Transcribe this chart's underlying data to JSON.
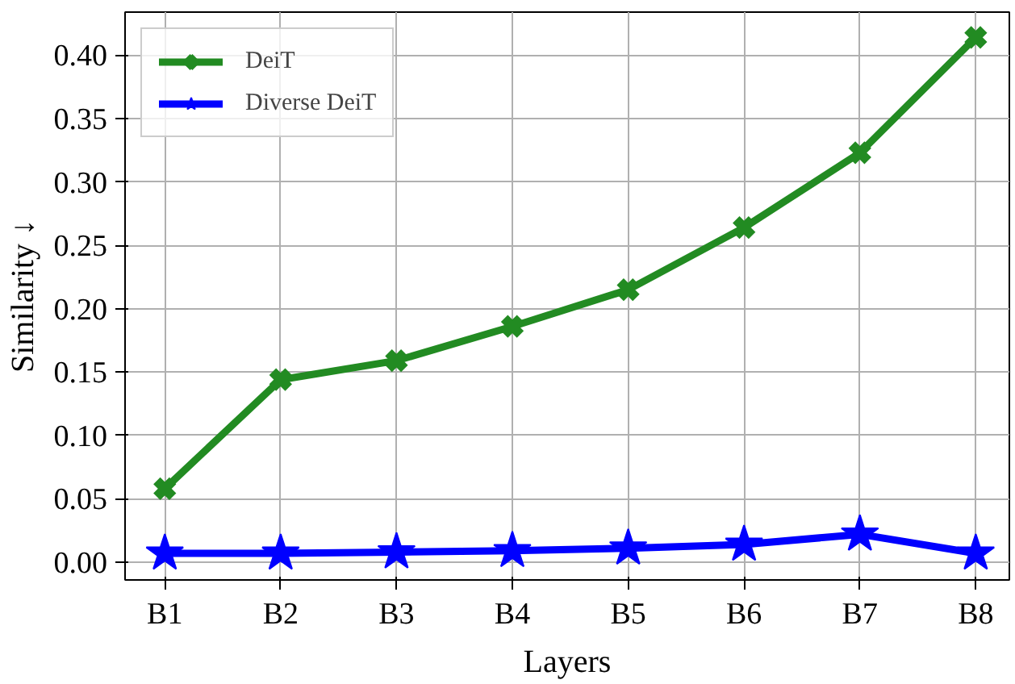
{
  "chart_data": {
    "type": "line",
    "xlabel": "Layers",
    "ylabel": "Similarity ↓",
    "categories": [
      "B1",
      "B2",
      "B3",
      "B4",
      "B5",
      "B6",
      "B7",
      "B8"
    ],
    "series": [
      {
        "name": "DeiT",
        "color": "#228b22",
        "marker": "cross",
        "values": [
          0.058,
          0.144,
          0.159,
          0.186,
          0.215,
          0.264,
          0.323,
          0.414
        ]
      },
      {
        "name": "Diverse DeiT",
        "color": "#0000ff",
        "marker": "star",
        "values": [
          0.007,
          0.007,
          0.008,
          0.009,
          0.011,
          0.014,
          0.022,
          0.007
        ]
      }
    ],
    "ylim": [
      -0.014,
      0.434
    ],
    "yticks": [
      {
        "value": 0,
        "label": "0.00"
      },
      {
        "value": 0.05,
        "label": "0.05"
      },
      {
        "value": 0.1,
        "label": "0.10"
      },
      {
        "value": 0.15,
        "label": "0.15"
      },
      {
        "value": 0.2,
        "label": "0.20"
      },
      {
        "value": 0.25,
        "label": "0.25"
      },
      {
        "value": 0.3,
        "label": "0.30"
      },
      {
        "value": 0.35,
        "label": "0.35"
      },
      {
        "value": 0.4,
        "label": "0.40"
      }
    ],
    "grid": true,
    "legend": "top left",
    "line_style": "solid"
  }
}
